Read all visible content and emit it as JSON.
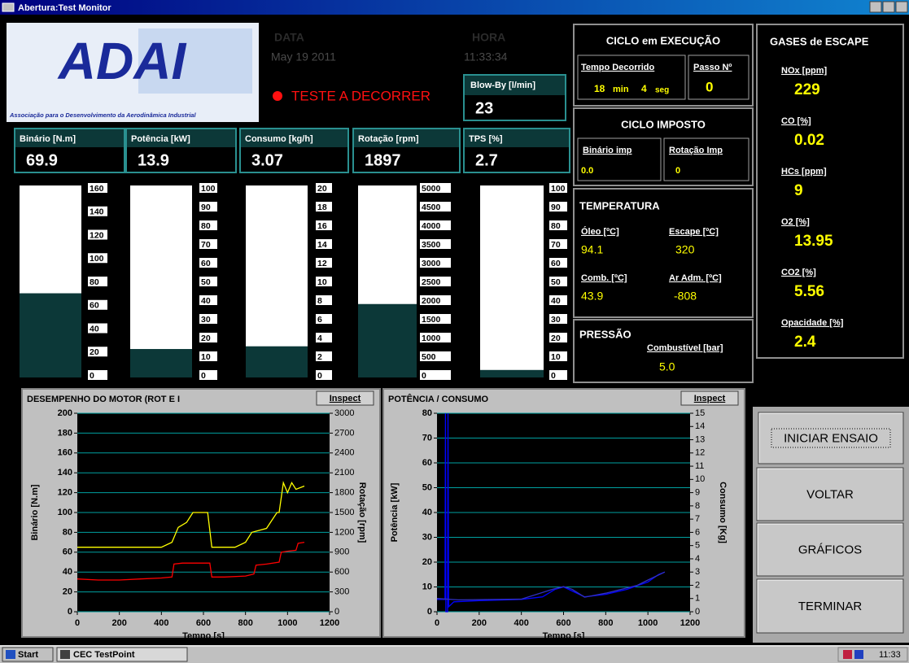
{
  "window": {
    "title": "Abertura:Test Monitor"
  },
  "logo": {
    "title": "ADAI",
    "caption": "Associação para o Desenvolvimento da Aerodinâmica Industrial"
  },
  "header": {
    "data_label": "DATA",
    "date": "May  19 2011",
    "hora_label": "HORA",
    "time": "11:33:34",
    "status": "TESTE A DECORRER"
  },
  "blowby": {
    "label": "Blow-By [l/min]",
    "value": "23"
  },
  "readouts": [
    {
      "label": "Binário [N.m]",
      "value": 69.9
    },
    {
      "label": "Potência [kW]",
      "value": 13.9
    },
    {
      "label": "Consumo [kg/h]",
      "value": 3.07
    },
    {
      "label": "Rotação [rpm]",
      "value": 1897
    },
    {
      "label": "TPS [%]",
      "value": 2.7
    }
  ],
  "gauges": [
    {
      "ticks": [
        160,
        140,
        120,
        100,
        80,
        60,
        40,
        20,
        0
      ]
    },
    {
      "ticks": [
        100,
        90,
        80,
        70,
        60,
        50,
        40,
        30,
        20,
        10,
        0
      ]
    },
    {
      "ticks": [
        20,
        18,
        16,
        14,
        12,
        10,
        8,
        6,
        4,
        2,
        0
      ]
    },
    {
      "ticks": [
        5000,
        4500,
        4000,
        3500,
        3000,
        2500,
        2000,
        1500,
        1000,
        500,
        0
      ]
    },
    {
      "ticks": [
        100,
        90,
        80,
        70,
        60,
        50,
        40,
        30,
        20,
        10,
        0
      ]
    }
  ],
  "ciclo_execucao": {
    "title": "CICLO em EXECUÇÃO",
    "tempo_label": "Tempo Decorrido",
    "tempo_min": "18",
    "min_unit": "min",
    "tempo_seg": "4",
    "seg_unit": "seg",
    "passo_label": "Passo Nº",
    "passo": "0"
  },
  "ciclo_imposto": {
    "title": "CICLO IMPOSTO",
    "binario_label": "Binário imp",
    "binario": "0.0",
    "rotacao_label": "Rotação Imp",
    "rotacao": "0"
  },
  "temperatura": {
    "title": "TEMPERATURA",
    "items": [
      {
        "label": "Óleo [ºC]",
        "value": "94.1"
      },
      {
        "label": "Escape [ºC]",
        "value": "320"
      },
      {
        "label": "Comb. [ºC]",
        "value": "43.9"
      },
      {
        "label": "Ar Adm. [ºC]",
        "value": "-808"
      }
    ]
  },
  "pressao": {
    "title": "PRESSÃO",
    "label": "Combustível [bar]",
    "value": "5.0"
  },
  "gases": {
    "title": "GASES de ESCAPE",
    "items": [
      {
        "label": "NOx [ppm]",
        "value": "229"
      },
      {
        "label": "CO [%]",
        "value": "0.02"
      },
      {
        "label": "HCs [ppm]",
        "value": "9"
      },
      {
        "label": "O2 [%]",
        "value": "13.95"
      },
      {
        "label": "CO2 [%]",
        "value": "5.56"
      },
      {
        "label": "Opacidade [%]",
        "value": "2.4"
      }
    ]
  },
  "buttons": [
    "INICIAR ENSAIO",
    "VOLTAR",
    "GRÁFICOS",
    "TERMINAR"
  ],
  "taskbar": {
    "start": "Start",
    "app": "CEC TestPoint",
    "clock": "11:33"
  },
  "chart_data": [
    {
      "type": "line",
      "title": "DESEMPENHO DO MOTOR (ROT E I",
      "button": "Inspect",
      "xlabel": "Tempo [s]",
      "ylabel": "Binário [N.m]",
      "y2label": "Rotação [rpm]",
      "xlim": [
        0,
        1200
      ],
      "xticks": [
        0,
        200,
        400,
        600,
        800,
        1000,
        1200
      ],
      "ylim": [
        0,
        200
      ],
      "yticks": [
        0,
        20,
        40,
        60,
        80,
        100,
        120,
        140,
        160,
        180,
        200
      ],
      "y2lim": [
        0,
        3000
      ],
      "y2ticks": [
        0,
        300,
        600,
        900,
        1200,
        1500,
        1800,
        2100,
        2400,
        2700,
        3000
      ],
      "grid": true,
      "series": [
        {
          "color": "#ff0000",
          "x": [
            0,
            100,
            200,
            300,
            400,
            450,
            460,
            500,
            600,
            630,
            640,
            700,
            800,
            840,
            850,
            900,
            960,
            970,
            1000,
            1040,
            1050,
            1080
          ],
          "values": [
            33,
            32,
            32,
            33,
            34,
            35,
            48,
            49,
            49,
            49,
            35,
            35,
            36,
            38,
            47,
            48,
            50,
            60,
            61,
            62,
            69,
            70
          ]
        },
        {
          "color": "#ffff00",
          "axis": "y2",
          "x": [
            0,
            200,
            400,
            450,
            480,
            520,
            550,
            620,
            640,
            750,
            800,
            830,
            900,
            950,
            960,
            980,
            1000,
            1020,
            1040,
            1080
          ],
          "values": [
            975,
            975,
            975,
            1050,
            1275,
            1350,
            1500,
            1500,
            975,
            975,
            1050,
            1200,
            1260,
            1500,
            1500,
            1950,
            1800,
            1950,
            1850,
            1900
          ]
        }
      ]
    },
    {
      "type": "line",
      "title": "POTÊNCIA / CONSUMO",
      "button": "Inspect",
      "xlabel": "Tempo [s]",
      "ylabel": "Potência [kW]",
      "y2label": "Consumo [Kg]",
      "xlim": [
        0,
        1200
      ],
      "xticks": [
        0,
        200,
        400,
        600,
        800,
        1000,
        1200
      ],
      "ylim": [
        0,
        80
      ],
      "yticks": [
        0,
        10,
        20,
        30,
        40,
        50,
        60,
        70,
        80
      ],
      "y2lim": [
        0,
        15
      ],
      "y2ticks": [
        0,
        1,
        2,
        3,
        4,
        5,
        6,
        7,
        8,
        9,
        10,
        11,
        12,
        13,
        14,
        15
      ],
      "grid": true,
      "series": [
        {
          "color": "#0000ff",
          "x": [
            0,
            38,
            40,
            42,
            50,
            52,
            55,
            80,
            200,
            400,
            500,
            560,
            600,
            650,
            700,
            800,
            900,
            1000,
            1050,
            1080
          ],
          "values": [
            5,
            5,
            80,
            0,
            0,
            80,
            2,
            4,
            4.5,
            5,
            6,
            9,
            10,
            8,
            6,
            7,
            9,
            12,
            15,
            16
          ]
        },
        {
          "color": "#3030c0",
          "axis": "y2",
          "x": [
            0,
            100,
            400,
            550,
            600,
            640,
            700,
            800,
            950,
            1000,
            1080
          ],
          "values": [
            1,
            0.9,
            0.95,
            1.7,
            1.9,
            1.7,
            1.1,
            1.4,
            2,
            2.4,
            3
          ]
        }
      ]
    }
  ]
}
